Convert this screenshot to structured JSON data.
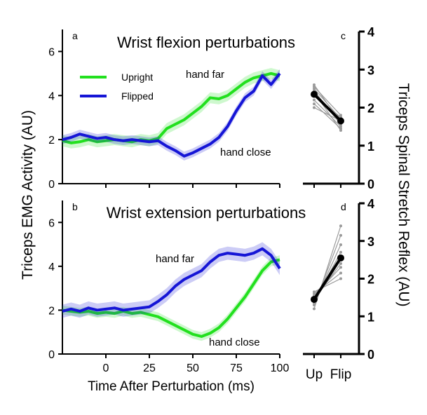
{
  "figure": {
    "shared_y_label": "Triceps EMG Activity (AU)",
    "shared_x_label": "Time After Perturbation (ms)",
    "right_y_label": "Triceps Spinal Stretch Reflex (AU)"
  },
  "legend": [
    {
      "name": "Upright",
      "color": "#22e01e"
    },
    {
      "name": "Flipped",
      "color": "#1515d6"
    }
  ],
  "chart_data": [
    {
      "id": "a",
      "type": "line",
      "panel_letter": "a",
      "title": "Wrist flexion perturbations",
      "xlim": [
        -25,
        100
      ],
      "ylim": [
        0,
        7
      ],
      "xticks": [
        0,
        25,
        50,
        75,
        100
      ],
      "yticks": [
        0,
        2,
        4,
        6
      ],
      "annotations": [
        "hand far",
        "hand close"
      ],
      "series": [
        {
          "name": "Upright",
          "color": "#22e01e",
          "x": [
            -25,
            -20,
            -15,
            -10,
            -5,
            0,
            5,
            10,
            15,
            20,
            25,
            30,
            35,
            40,
            45,
            50,
            55,
            60,
            65,
            70,
            75,
            80,
            85,
            90,
            95,
            100
          ],
          "y": [
            1.95,
            1.85,
            1.9,
            2.0,
            1.9,
            1.95,
            2.0,
            1.95,
            1.9,
            2.0,
            1.95,
            2.05,
            2.5,
            2.7,
            2.9,
            3.2,
            3.5,
            3.9,
            3.85,
            4.0,
            4.3,
            4.6,
            4.8,
            4.9,
            5.0,
            4.9
          ],
          "band": 0.25
        },
        {
          "name": "Flipped",
          "color": "#1515d6",
          "x": [
            -25,
            -20,
            -15,
            -10,
            -5,
            0,
            5,
            10,
            15,
            20,
            25,
            30,
            35,
            40,
            45,
            50,
            55,
            60,
            65,
            70,
            75,
            80,
            85,
            90,
            95,
            100
          ],
          "y": [
            2.0,
            2.1,
            2.25,
            2.15,
            2.05,
            2.1,
            2.0,
            1.95,
            2.0,
            1.95,
            1.9,
            1.95,
            1.7,
            1.5,
            1.25,
            1.4,
            1.6,
            1.8,
            2.1,
            2.6,
            3.3,
            3.9,
            4.2,
            4.9,
            4.5,
            5.0
          ],
          "band": 0.2
        }
      ]
    },
    {
      "id": "b",
      "type": "line",
      "panel_letter": "b",
      "title": "Wrist extension perturbations",
      "xlim": [
        -25,
        100
      ],
      "ylim": [
        0,
        7
      ],
      "xticks": [
        0,
        25,
        50,
        75,
        100
      ],
      "xtick_labels": [
        "0",
        "25",
        "50",
        "75",
        "100"
      ],
      "yticks": [
        0,
        2,
        4,
        6
      ],
      "annotations": [
        "hand far",
        "hand close"
      ],
      "series": [
        {
          "name": "Upright",
          "color": "#22e01e",
          "x": [
            -25,
            -20,
            -15,
            -10,
            -5,
            0,
            5,
            10,
            15,
            20,
            25,
            30,
            35,
            40,
            45,
            50,
            55,
            60,
            65,
            70,
            75,
            80,
            85,
            90,
            95,
            100
          ],
          "y": [
            2.0,
            1.95,
            1.9,
            1.95,
            1.85,
            1.9,
            1.85,
            1.95,
            1.85,
            1.9,
            1.8,
            1.7,
            1.5,
            1.3,
            1.1,
            0.9,
            0.8,
            0.95,
            1.2,
            1.6,
            2.1,
            2.6,
            3.2,
            3.8,
            4.2,
            4.3
          ],
          "band": 0.2
        },
        {
          "name": "Flipped",
          "color": "#1515d6",
          "x": [
            -25,
            -20,
            -15,
            -10,
            -5,
            0,
            5,
            10,
            15,
            20,
            25,
            30,
            35,
            40,
            45,
            50,
            55,
            60,
            65,
            70,
            75,
            80,
            85,
            90,
            95,
            100
          ],
          "y": [
            1.95,
            2.05,
            1.95,
            2.1,
            2.0,
            2.05,
            2.1,
            2.0,
            2.05,
            2.1,
            2.15,
            2.4,
            2.7,
            3.1,
            3.4,
            3.6,
            3.8,
            4.2,
            4.5,
            4.6,
            4.55,
            4.5,
            4.6,
            4.8,
            4.5,
            3.9
          ],
          "band": 0.3
        }
      ]
    },
    {
      "id": "c",
      "type": "line",
      "panel_letter": "c",
      "categories": [
        "Up",
        "Flip"
      ],
      "ylim": [
        0,
        4
      ],
      "yticks": [
        0,
        1,
        2,
        3,
        4
      ],
      "mean": [
        2.35,
        1.65
      ],
      "subjects": [
        [
          2.6,
          1.6
        ],
        [
          2.5,
          1.7
        ],
        [
          2.45,
          1.55
        ],
        [
          2.3,
          1.75
        ],
        [
          2.2,
          1.5
        ],
        [
          2.1,
          1.45
        ],
        [
          2.0,
          1.65
        ],
        [
          2.55,
          1.8
        ],
        [
          2.4,
          1.4
        ]
      ]
    },
    {
      "id": "d",
      "type": "line",
      "panel_letter": "d",
      "categories": [
        "Up",
        "Flip"
      ],
      "ylim": [
        0,
        4
      ],
      "yticks": [
        0,
        1,
        2,
        3,
        4
      ],
      "mean": [
        1.45,
        2.55
      ],
      "subjects": [
        [
          1.2,
          3.4
        ],
        [
          1.3,
          3.15
        ],
        [
          1.35,
          2.9
        ],
        [
          1.4,
          2.7
        ],
        [
          1.5,
          2.5
        ],
        [
          1.55,
          2.3
        ],
        [
          1.6,
          2.15
        ],
        [
          1.65,
          2.0
        ],
        [
          1.45,
          2.4
        ]
      ]
    }
  ]
}
